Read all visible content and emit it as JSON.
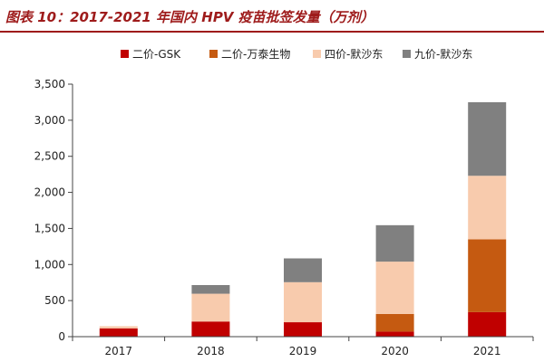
{
  "header": {
    "title": "图表 10：2017-2021 年国内 HPV 疫苗批签发量（万剂）"
  },
  "chart_data": {
    "type": "bar",
    "stacked": true,
    "title": "",
    "xlabel": "",
    "ylabel": "",
    "categories": [
      "2017",
      "2018",
      "2019",
      "2020",
      "2021"
    ],
    "ylim": [
      0,
      3500
    ],
    "yticks": [
      0,
      500,
      1000,
      1500,
      2000,
      2500,
      3000,
      3500
    ],
    "ytick_labels": [
      "0",
      "500",
      "1,000",
      "1,500",
      "2,000",
      "2,500",
      "3,000",
      "3,500"
    ],
    "legend_position": "top",
    "grid": false,
    "series": [
      {
        "name": "二价-GSK",
        "color": "#c00000",
        "values": [
          115,
          210,
          200,
          70,
          340
        ]
      },
      {
        "name": "二价-万泰生物",
        "color": "#c55a11",
        "values": [
          0,
          0,
          0,
          245,
          1010
        ]
      },
      {
        "name": "四价-默沙东",
        "color": "#f8cbad",
        "values": [
          30,
          385,
          555,
          725,
          880
        ]
      },
      {
        "name": "九价-默沙东",
        "color": "#808080",
        "values": [
          0,
          120,
          330,
          505,
          1020
        ]
      }
    ]
  }
}
